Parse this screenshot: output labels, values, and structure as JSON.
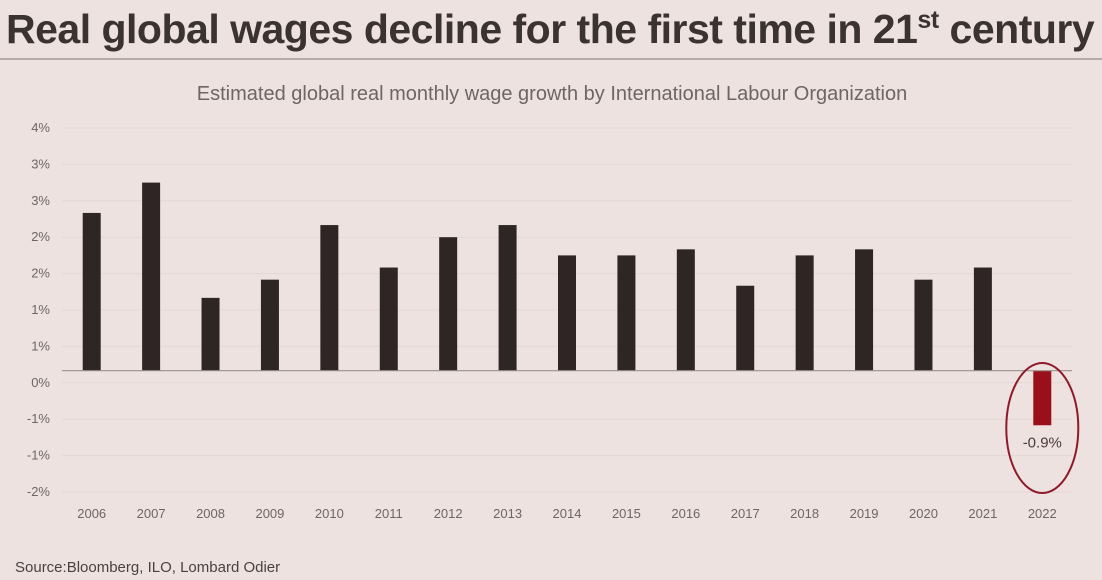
{
  "title": {
    "main": "Real global wages decline for the first time in 21",
    "superscript": "st",
    "suffix": " century"
  },
  "source": "Source:Bloomberg, ILO, Lombard Odier",
  "colors": {
    "bar": "#2e2625",
    "highlight_bar": "#9a101a",
    "highlight_circle": "#8e1a2a",
    "gridline": "#e4d7d4",
    "zero_line": "#9a8f8d"
  },
  "chart_data": {
    "type": "bar",
    "title": "Estimated global real monthly wage growth by International Labour Organization",
    "xlabel": "",
    "ylabel": "",
    "ylim": [
      -1.5,
      3.5
    ],
    "grid": true,
    "y_tick_labels": [
      "4%",
      "3%",
      "3%",
      "2%",
      "2%",
      "1%",
      "1%",
      "0%",
      "-1%",
      "-1%",
      "-2%"
    ],
    "categories": [
      "2006",
      "2007",
      "2008",
      "2009",
      "2010",
      "2011",
      "2012",
      "2013",
      "2014",
      "2015",
      "2016",
      "2017",
      "2018",
      "2019",
      "2020",
      "2021",
      "2022"
    ],
    "values": [
      2.6,
      3.1,
      1.2,
      1.5,
      2.4,
      1.7,
      2.2,
      2.4,
      1.9,
      1.9,
      2.0,
      1.4,
      1.9,
      2.0,
      1.5,
      1.7,
      -0.9
    ],
    "highlight": {
      "category": "2022",
      "label": "-0.9%"
    }
  }
}
